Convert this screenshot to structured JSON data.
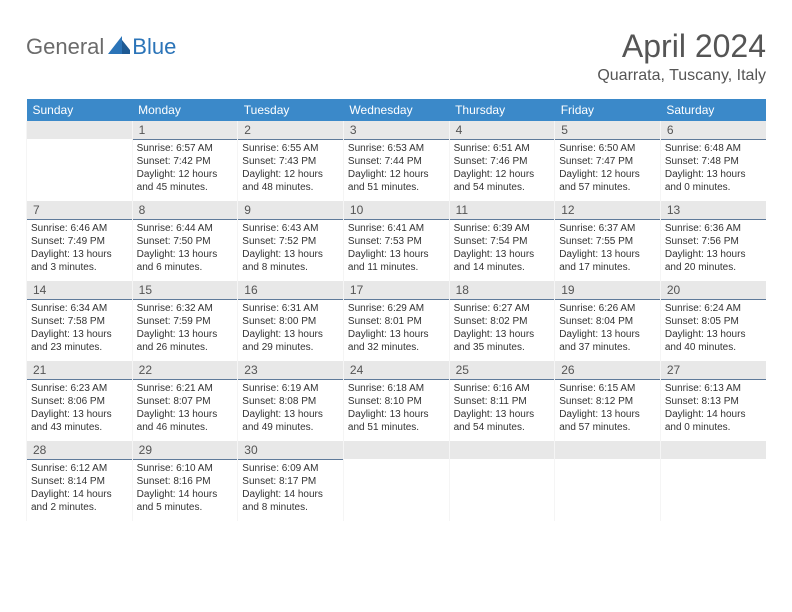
{
  "logo": {
    "part1": "General",
    "part2": "Blue"
  },
  "header": {
    "title": "April 2024",
    "location": "Quarrata, Tuscany, Italy"
  },
  "colors": {
    "header_bg": "#3b89c9",
    "header_text": "#ffffff",
    "date_bg": "#e8e8e8",
    "date_border": "#5f7a9a",
    "text": "#333333",
    "title": "#555555",
    "logo_gray": "#6b6b6b",
    "logo_blue": "#2b74b8"
  },
  "weekdays": [
    "Sunday",
    "Monday",
    "Tuesday",
    "Wednesday",
    "Thursday",
    "Friday",
    "Saturday"
  ],
  "weeks": [
    [
      null,
      {
        "d": "1",
        "sr": "Sunrise: 6:57 AM",
        "ss": "Sunset: 7:42 PM",
        "dl1": "Daylight: 12 hours",
        "dl2": "and 45 minutes."
      },
      {
        "d": "2",
        "sr": "Sunrise: 6:55 AM",
        "ss": "Sunset: 7:43 PM",
        "dl1": "Daylight: 12 hours",
        "dl2": "and 48 minutes."
      },
      {
        "d": "3",
        "sr": "Sunrise: 6:53 AM",
        "ss": "Sunset: 7:44 PM",
        "dl1": "Daylight: 12 hours",
        "dl2": "and 51 minutes."
      },
      {
        "d": "4",
        "sr": "Sunrise: 6:51 AM",
        "ss": "Sunset: 7:46 PM",
        "dl1": "Daylight: 12 hours",
        "dl2": "and 54 minutes."
      },
      {
        "d": "5",
        "sr": "Sunrise: 6:50 AM",
        "ss": "Sunset: 7:47 PM",
        "dl1": "Daylight: 12 hours",
        "dl2": "and 57 minutes."
      },
      {
        "d": "6",
        "sr": "Sunrise: 6:48 AM",
        "ss": "Sunset: 7:48 PM",
        "dl1": "Daylight: 13 hours",
        "dl2": "and 0 minutes."
      }
    ],
    [
      {
        "d": "7",
        "sr": "Sunrise: 6:46 AM",
        "ss": "Sunset: 7:49 PM",
        "dl1": "Daylight: 13 hours",
        "dl2": "and 3 minutes."
      },
      {
        "d": "8",
        "sr": "Sunrise: 6:44 AM",
        "ss": "Sunset: 7:50 PM",
        "dl1": "Daylight: 13 hours",
        "dl2": "and 6 minutes."
      },
      {
        "d": "9",
        "sr": "Sunrise: 6:43 AM",
        "ss": "Sunset: 7:52 PM",
        "dl1": "Daylight: 13 hours",
        "dl2": "and 8 minutes."
      },
      {
        "d": "10",
        "sr": "Sunrise: 6:41 AM",
        "ss": "Sunset: 7:53 PM",
        "dl1": "Daylight: 13 hours",
        "dl2": "and 11 minutes."
      },
      {
        "d": "11",
        "sr": "Sunrise: 6:39 AM",
        "ss": "Sunset: 7:54 PM",
        "dl1": "Daylight: 13 hours",
        "dl2": "and 14 minutes."
      },
      {
        "d": "12",
        "sr": "Sunrise: 6:37 AM",
        "ss": "Sunset: 7:55 PM",
        "dl1": "Daylight: 13 hours",
        "dl2": "and 17 minutes."
      },
      {
        "d": "13",
        "sr": "Sunrise: 6:36 AM",
        "ss": "Sunset: 7:56 PM",
        "dl1": "Daylight: 13 hours",
        "dl2": "and 20 minutes."
      }
    ],
    [
      {
        "d": "14",
        "sr": "Sunrise: 6:34 AM",
        "ss": "Sunset: 7:58 PM",
        "dl1": "Daylight: 13 hours",
        "dl2": "and 23 minutes."
      },
      {
        "d": "15",
        "sr": "Sunrise: 6:32 AM",
        "ss": "Sunset: 7:59 PM",
        "dl1": "Daylight: 13 hours",
        "dl2": "and 26 minutes."
      },
      {
        "d": "16",
        "sr": "Sunrise: 6:31 AM",
        "ss": "Sunset: 8:00 PM",
        "dl1": "Daylight: 13 hours",
        "dl2": "and 29 minutes."
      },
      {
        "d": "17",
        "sr": "Sunrise: 6:29 AM",
        "ss": "Sunset: 8:01 PM",
        "dl1": "Daylight: 13 hours",
        "dl2": "and 32 minutes."
      },
      {
        "d": "18",
        "sr": "Sunrise: 6:27 AM",
        "ss": "Sunset: 8:02 PM",
        "dl1": "Daylight: 13 hours",
        "dl2": "and 35 minutes."
      },
      {
        "d": "19",
        "sr": "Sunrise: 6:26 AM",
        "ss": "Sunset: 8:04 PM",
        "dl1": "Daylight: 13 hours",
        "dl2": "and 37 minutes."
      },
      {
        "d": "20",
        "sr": "Sunrise: 6:24 AM",
        "ss": "Sunset: 8:05 PM",
        "dl1": "Daylight: 13 hours",
        "dl2": "and 40 minutes."
      }
    ],
    [
      {
        "d": "21",
        "sr": "Sunrise: 6:23 AM",
        "ss": "Sunset: 8:06 PM",
        "dl1": "Daylight: 13 hours",
        "dl2": "and 43 minutes."
      },
      {
        "d": "22",
        "sr": "Sunrise: 6:21 AM",
        "ss": "Sunset: 8:07 PM",
        "dl1": "Daylight: 13 hours",
        "dl2": "and 46 minutes."
      },
      {
        "d": "23",
        "sr": "Sunrise: 6:19 AM",
        "ss": "Sunset: 8:08 PM",
        "dl1": "Daylight: 13 hours",
        "dl2": "and 49 minutes."
      },
      {
        "d": "24",
        "sr": "Sunrise: 6:18 AM",
        "ss": "Sunset: 8:10 PM",
        "dl1": "Daylight: 13 hours",
        "dl2": "and 51 minutes."
      },
      {
        "d": "25",
        "sr": "Sunrise: 6:16 AM",
        "ss": "Sunset: 8:11 PM",
        "dl1": "Daylight: 13 hours",
        "dl2": "and 54 minutes."
      },
      {
        "d": "26",
        "sr": "Sunrise: 6:15 AM",
        "ss": "Sunset: 8:12 PM",
        "dl1": "Daylight: 13 hours",
        "dl2": "and 57 minutes."
      },
      {
        "d": "27",
        "sr": "Sunrise: 6:13 AM",
        "ss": "Sunset: 8:13 PM",
        "dl1": "Daylight: 14 hours",
        "dl2": "and 0 minutes."
      }
    ],
    [
      {
        "d": "28",
        "sr": "Sunrise: 6:12 AM",
        "ss": "Sunset: 8:14 PM",
        "dl1": "Daylight: 14 hours",
        "dl2": "and 2 minutes."
      },
      {
        "d": "29",
        "sr": "Sunrise: 6:10 AM",
        "ss": "Sunset: 8:16 PM",
        "dl1": "Daylight: 14 hours",
        "dl2": "and 5 minutes."
      },
      {
        "d": "30",
        "sr": "Sunrise: 6:09 AM",
        "ss": "Sunset: 8:17 PM",
        "dl1": "Daylight: 14 hours",
        "dl2": "and 8 minutes."
      },
      null,
      null,
      null,
      null
    ]
  ]
}
